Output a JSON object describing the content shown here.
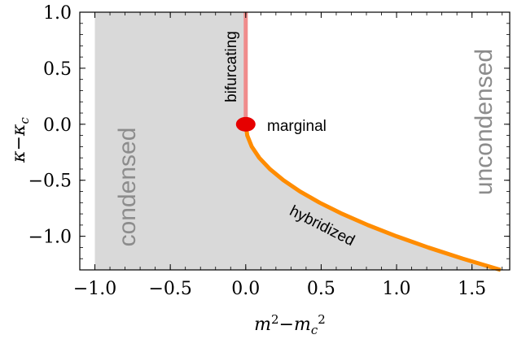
{
  "chart_data": {
    "type": "line",
    "title": "",
    "xlabel": "m²−m_c²",
    "ylabel": "κ−κ_c",
    "xlim": [
      -1.1,
      1.75
    ],
    "ylim": [
      -1.3,
      1.0
    ],
    "x_ticks": [
      -1.0,
      -0.5,
      0.0,
      0.5,
      1.0,
      1.5
    ],
    "x_tick_labels": [
      "−1.0",
      "−0.5",
      "0.0",
      "0.5",
      "1.0",
      "1.5"
    ],
    "y_ticks": [
      1.0,
      0.5,
      0.0,
      -0.5,
      -1.0
    ],
    "y_tick_labels": [
      "1.0",
      "0.5",
      "0.0",
      "−0.5",
      "−1.0"
    ],
    "grid": false,
    "colors": {
      "condensed_fill": "#d9d9d9",
      "bifurcating": "#f08c8c",
      "hybridized": "#ff8c00",
      "marginal": "#e60000",
      "region_text": "#8c8c8c"
    },
    "regions": [
      {
        "label": "condensed",
        "x_from": -1.0
      },
      {
        "label": "uncondensed"
      }
    ],
    "series": [
      {
        "name": "bifurcating",
        "x": [
          0.0,
          0.0
        ],
        "y": [
          0.0,
          1.0
        ]
      },
      {
        "name": "hybridized",
        "x": [
          0.0,
          0.01,
          0.04,
          0.09,
          0.16,
          0.25,
          0.36,
          0.49,
          0.64,
          0.81,
          1.0,
          1.21,
          1.44,
          1.69
        ],
        "y": [
          0.0,
          -0.1,
          -0.2,
          -0.3,
          -0.4,
          -0.5,
          -0.6,
          -0.7,
          -0.8,
          -0.9,
          -1.0,
          -1.1,
          -1.2,
          -1.3
        ]
      }
    ],
    "marker": {
      "label": "marginal",
      "x": 0.0,
      "y": 0.0
    },
    "annotations": {
      "condensed": "condensed",
      "uncondensed": "uncondensed",
      "bifurcating": "bifurcating",
      "hybridized": "hybridized",
      "marginal": "marginal"
    }
  }
}
